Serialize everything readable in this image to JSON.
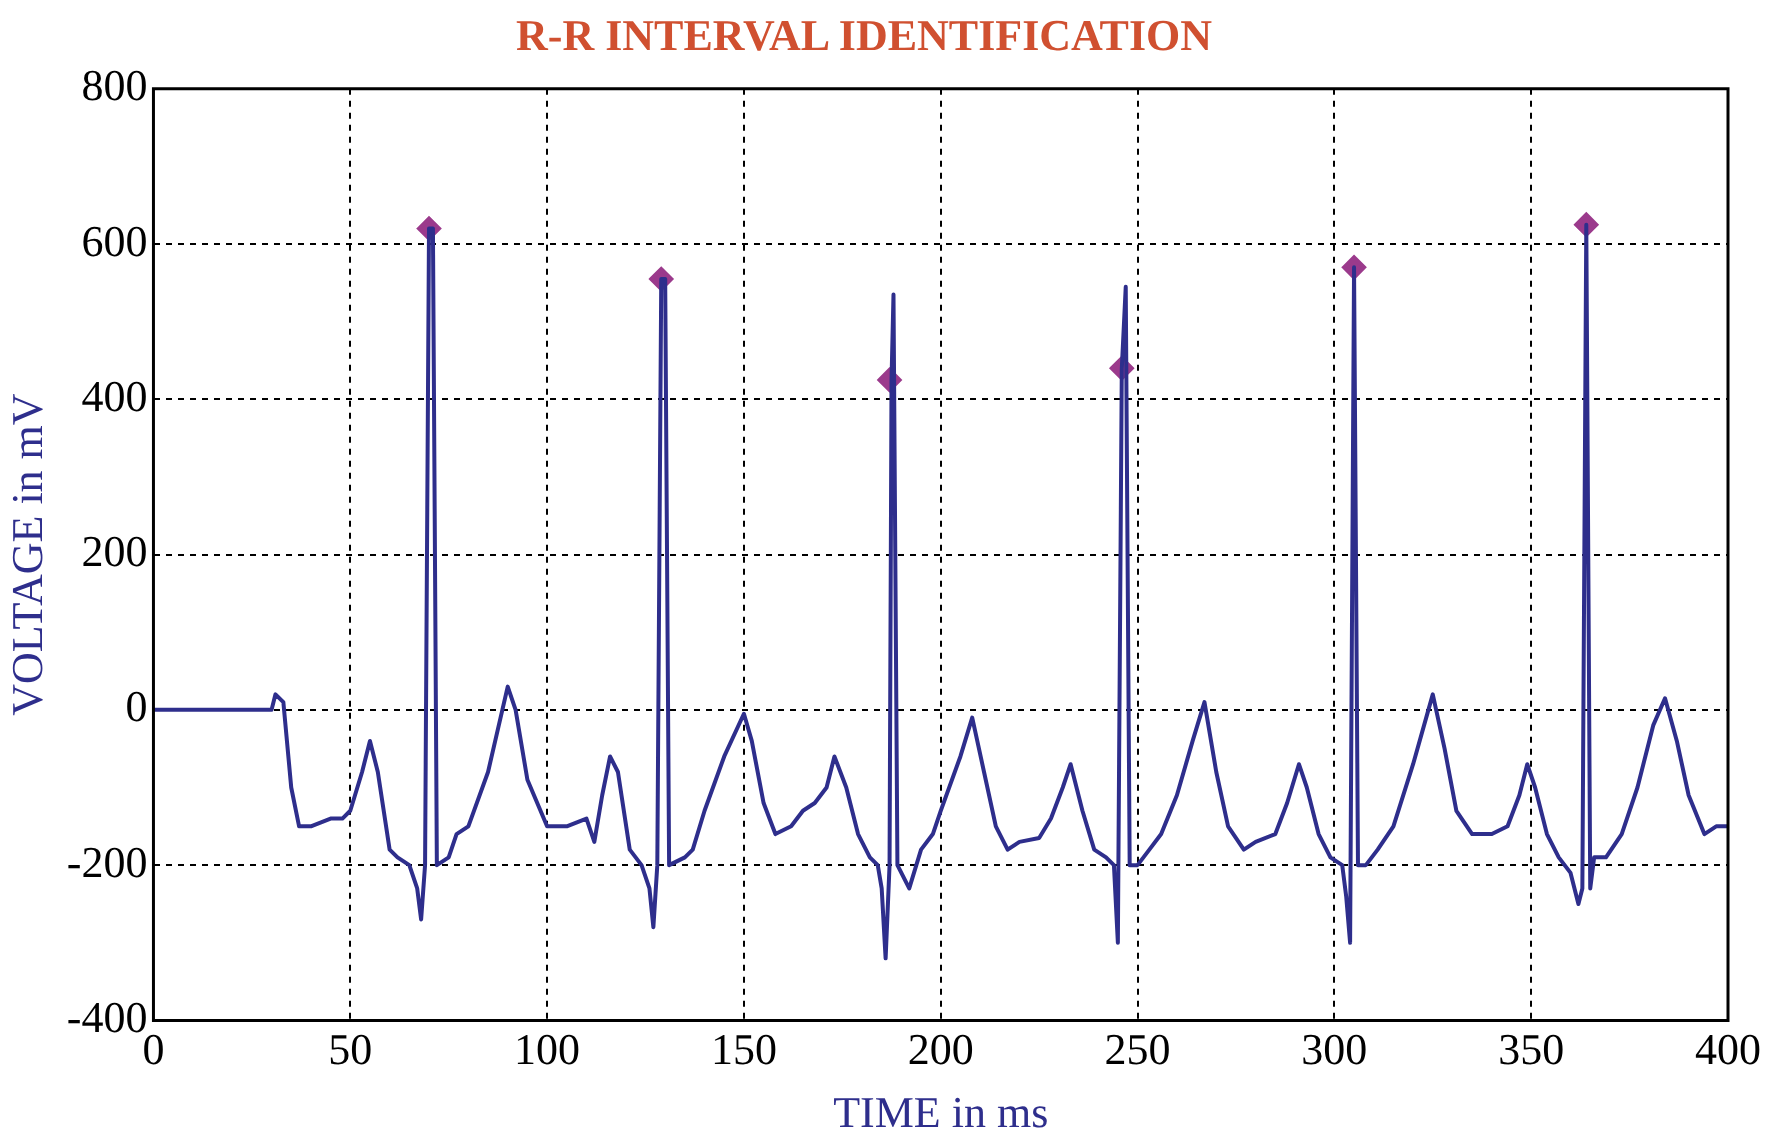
{
  "chart_data": {
    "type": "line",
    "title": "R-R INTERVAL IDENTIFICATION",
    "xlabel": "TIME in ms",
    "ylabel": "VOLTAGE in mV",
    "xlim": [
      0,
      400
    ],
    "xticks": [
      0,
      50,
      100,
      150,
      200,
      250,
      300,
      350,
      400
    ],
    "ylim": [
      -400,
      800
    ],
    "yticks": [
      -400,
      -200,
      0,
      200,
      400,
      600,
      800
    ],
    "grid": true,
    "legend": false,
    "series": [
      {
        "color": "#2e2e8c",
        "marker": "none",
        "line_style": "solid",
        "x": [
          0,
          30,
          31,
          33,
          35,
          37,
          40,
          45,
          48,
          50,
          53,
          55,
          57,
          60,
          62,
          65,
          67,
          68,
          69,
          70,
          71,
          72,
          75,
          77,
          80,
          85,
          90,
          92,
          95,
          100,
          105,
          110,
          112,
          114,
          116,
          118,
          121,
          124,
          126,
          127,
          128,
          129,
          130,
          131,
          135,
          137,
          140,
          145,
          150,
          152,
          155,
          158,
          162,
          165,
          168,
          171,
          173,
          176,
          179,
          182,
          184,
          185,
          186,
          187,
          187.5,
          188,
          189,
          190,
          192,
          195,
          198,
          200,
          205,
          208,
          211,
          214,
          217,
          220,
          225,
          228,
          231,
          233,
          236,
          239,
          242,
          244,
          245,
          246,
          247,
          248,
          250,
          253,
          256,
          260,
          264,
          267,
          270,
          273,
          277,
          280,
          285,
          288,
          291,
          293,
          296,
          299,
          302,
          303,
          304,
          305,
          306,
          308,
          311,
          315,
          320,
          325,
          328,
          331,
          335,
          340,
          344,
          347,
          349,
          351,
          354,
          357,
          360,
          362,
          363,
          364,
          365,
          366,
          369,
          373,
          377,
          381,
          384,
          387,
          390,
          394,
          397,
          400
        ],
        "values": [
          0,
          0,
          20,
          10,
          -100,
          -150,
          -150,
          -140,
          -140,
          -130,
          -80,
          -40,
          -80,
          -180,
          -190,
          -200,
          -230,
          -270,
          -200,
          620,
          620,
          -200,
          -190,
          -160,
          -150,
          -80,
          30,
          0,
          -90,
          -150,
          -150,
          -140,
          -170,
          -110,
          -60,
          -80,
          -180,
          -200,
          -230,
          -280,
          -200,
          555,
          555,
          -200,
          -190,
          -180,
          -130,
          -60,
          -5,
          -40,
          -120,
          -160,
          -150,
          -130,
          -120,
          -100,
          -60,
          -100,
          -160,
          -190,
          -200,
          -230,
          -320,
          -200,
          425,
          535,
          -200,
          -210,
          -230,
          -180,
          -160,
          -130,
          -60,
          -10,
          -80,
          -150,
          -180,
          -170,
          -165,
          -140,
          -100,
          -70,
          -130,
          -180,
          -190,
          -200,
          -300,
          440,
          545,
          -200,
          -200,
          -180,
          -160,
          -110,
          -40,
          10,
          -80,
          -150,
          -180,
          -170,
          -160,
          -120,
          -70,
          -100,
          -160,
          -190,
          -200,
          -240,
          -300,
          570,
          -200,
          -200,
          -180,
          -150,
          -70,
          20,
          -50,
          -130,
          -160,
          -160,
          -150,
          -110,
          -70,
          -100,
          -160,
          -190,
          -210,
          -250,
          -230,
          625,
          -230,
          -190,
          -190,
          -160,
          -100,
          -20,
          15,
          -40,
          -110,
          -160,
          -150,
          -150
        ]
      },
      {
        "type": "scatter",
        "color": "#9b3a8c",
        "marker": "diamond",
        "x": [
          70,
          129,
          187,
          246,
          305,
          364
        ],
        "values": [
          620,
          555,
          425,
          440,
          570,
          625
        ]
      }
    ]
  }
}
